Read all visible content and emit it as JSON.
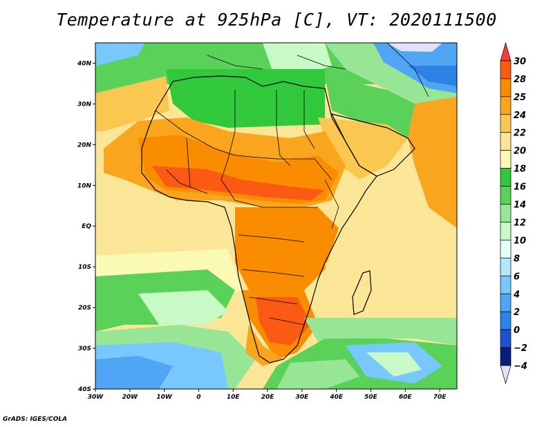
{
  "title": "Temperature at 925hPa [C], VT: 2020111500",
  "credit": "GrADS: IGES/COLA",
  "map": {
    "lon_range": [
      -30,
      75
    ],
    "lat_range": [
      -40,
      45
    ],
    "lon_ticks": [
      "30W",
      "20W",
      "10W",
      "0",
      "10E",
      "20E",
      "30E",
      "40E",
      "50E",
      "60E",
      "70E"
    ],
    "lat_ticks": [
      "40N",
      "30N",
      "20N",
      "10N",
      "EQ",
      "10S",
      "20S",
      "30S",
      "40S"
    ]
  },
  "colorbar": {
    "levels": [
      "30",
      "28",
      "25",
      "24",
      "22",
      "20",
      "18",
      "16",
      "14",
      "12",
      "10",
      "8",
      "6",
      "4",
      "2",
      "0",
      "−2",
      "−4"
    ],
    "colors": [
      "#fa3c3c",
      "#fa5a14",
      "#fa8c00",
      "#faa51e",
      "#fac850",
      "#fae696",
      "#fafab4",
      "#32c83c",
      "#5ad25a",
      "#96e696",
      "#c8fac8",
      "#e6fffa",
      "#b4e6ff",
      "#78c8ff",
      "#50a5f5",
      "#2d82e6",
      "#1e50d2",
      "#0a1e78",
      "#e1e1fa"
    ]
  }
}
